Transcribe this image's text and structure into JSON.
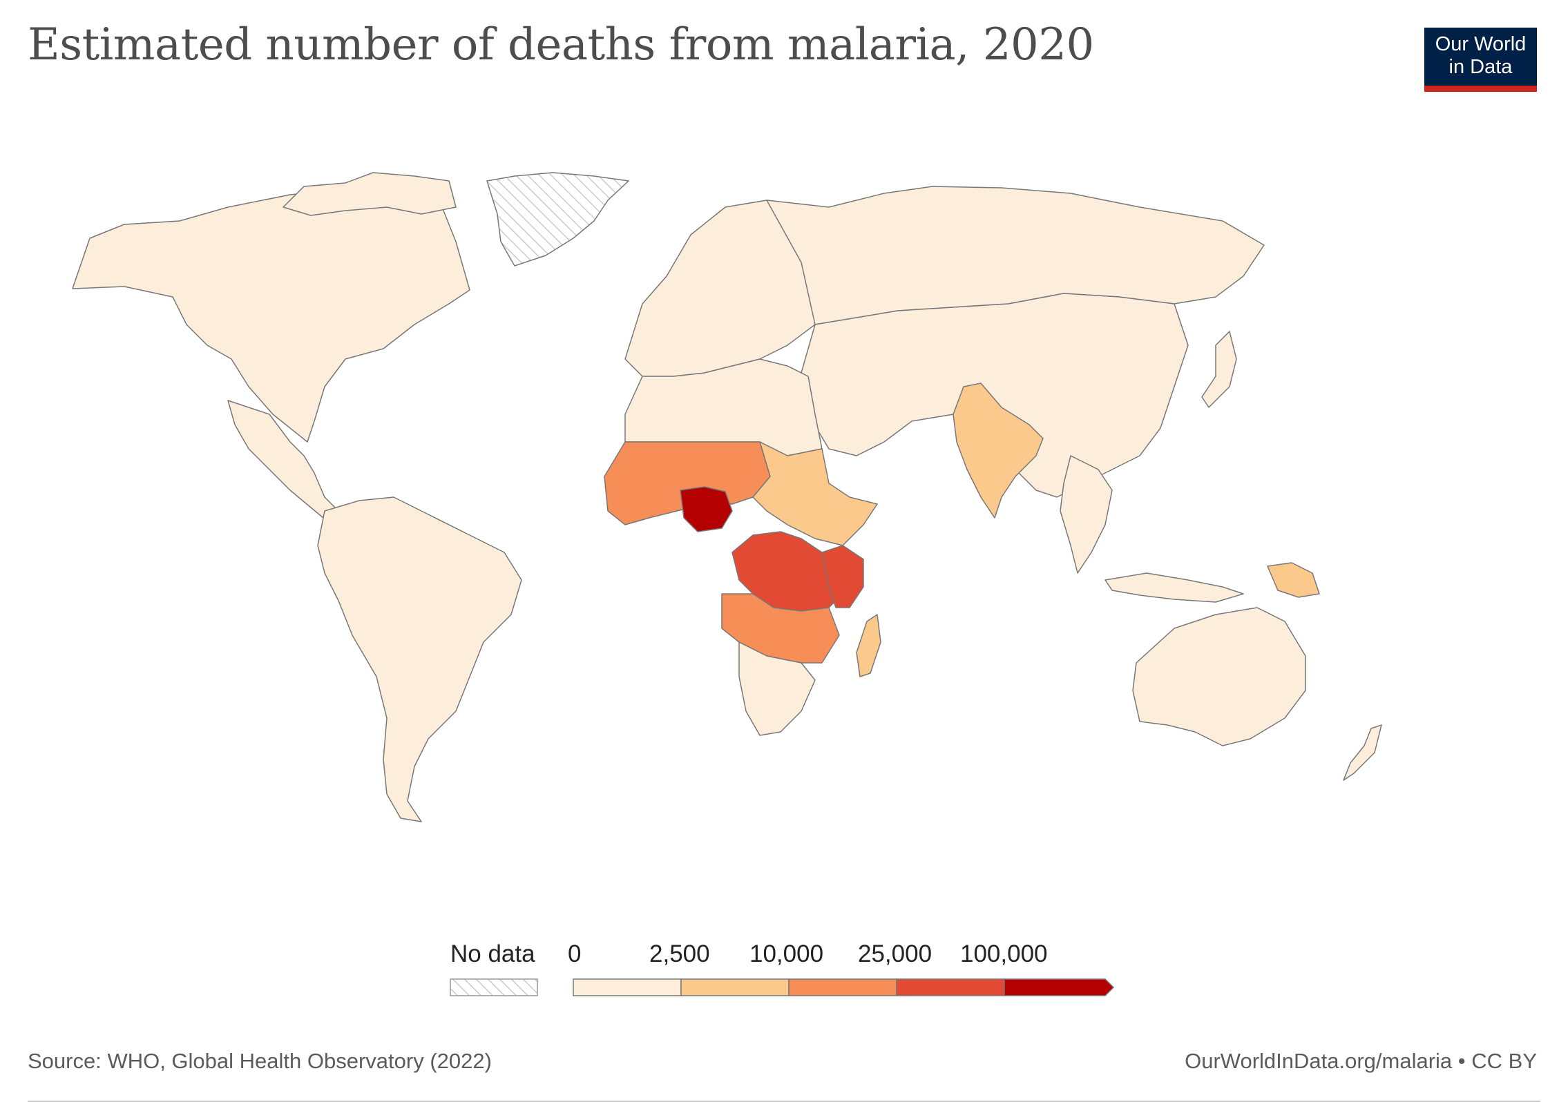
{
  "title": "Estimated number of deaths from malaria, 2020",
  "logo": {
    "line1": "Our World",
    "line2": "in Data"
  },
  "legend": {
    "no_data_label": "No data",
    "bins": [
      {
        "label": "0",
        "color": "#fdeedc"
      },
      {
        "label": "2,500",
        "color": "#fbc98b"
      },
      {
        "label": "10,000",
        "color": "#f88e57"
      },
      {
        "label": "25,000",
        "color": "#e24a33"
      },
      {
        "label": "100,000",
        "color": "#b40000"
      }
    ]
  },
  "colors": {
    "land_default": "#fdeedc",
    "border": "#777777",
    "no_data_hatch": "#cccccc",
    "logo_bg": "#002147",
    "logo_accent": "#ce261e"
  },
  "footer": {
    "source": "Source: WHO, Global Health Observatory (2022)",
    "url": "OurWorldInData.org/malaria • CC BY"
  }
}
